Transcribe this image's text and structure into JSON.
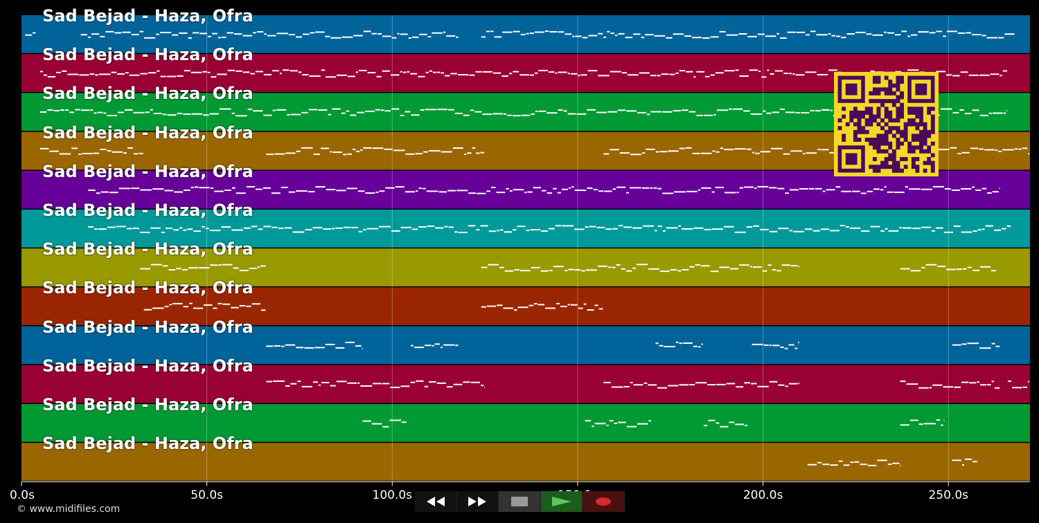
{
  "app": {
    "copyright": "© www.midifiles.com"
  },
  "colors": {
    "background": "#000000",
    "note": "#ffffff",
    "qr_fg": "#4a0a5a",
    "qr_bg": "#f5d728"
  },
  "tracks": [
    {
      "label": "Sad Bejad - Haza, Ofra",
      "color": "#00639a"
    },
    {
      "label": "Sad Bejad - Haza, Ofra",
      "color": "#990033"
    },
    {
      "label": "Sad Bejad - Haza, Ofra",
      "color": "#009933"
    },
    {
      "label": "Sad Bejad - Haza, Ofra",
      "color": "#996600"
    },
    {
      "label": "Sad Bejad - Haza, Ofra",
      "color": "#660099"
    },
    {
      "label": "Sad Bejad - Haza, Ofra",
      "color": "#009999"
    },
    {
      "label": "Sad Bejad - Haza, Ofra",
      "color": "#999900"
    },
    {
      "label": "Sad Bejad - Haza, Ofra",
      "color": "#992600"
    },
    {
      "label": "Sad Bejad - Haza, Ofra",
      "color": "#00639a"
    },
    {
      "label": "Sad Bejad - Haza, Ofra",
      "color": "#990033"
    },
    {
      "label": "Sad Bejad - Haza, Ofra",
      "color": "#009933"
    },
    {
      "label": "Sad Bejad - Haza, Ofra",
      "color": "#996600"
    }
  ],
  "timeline": {
    "xlim": [
      0,
      272
    ],
    "ticks": [
      {
        "value": 0,
        "label": "0.0s"
      },
      {
        "value": 50,
        "label": "50.0s"
      },
      {
        "value": 100,
        "label": "100.0s"
      },
      {
        "value": 150,
        "label": "150.0s"
      },
      {
        "value": 200,
        "label": "200.0s"
      },
      {
        "value": 250,
        "label": "250.0s"
      }
    ]
  },
  "notes": [
    [
      [
        1,
        4
      ],
      [
        16,
        118
      ],
      [
        124,
        268
      ]
    ],
    [
      [
        5,
        266
      ]
    ],
    [
      [
        5,
        266
      ]
    ],
    [
      [
        5,
        33
      ],
      [
        66,
        125
      ],
      [
        157,
        272
      ]
    ],
    [
      [
        18,
        264
      ]
    ],
    [
      [
        18,
        267
      ]
    ],
    [
      [
        32,
        66
      ],
      [
        124,
        210
      ],
      [
        237,
        263
      ]
    ],
    [
      [
        33,
        66
      ],
      [
        124,
        157
      ]
    ],
    [
      [
        66,
        92
      ],
      [
        105,
        118
      ],
      [
        171,
        184
      ],
      [
        197,
        210
      ],
      [
        251,
        264
      ]
    ],
    [
      [
        66,
        125
      ],
      [
        157,
        210
      ],
      [
        237,
        264
      ],
      [
        266,
        272
      ]
    ],
    [
      [
        92,
        104
      ],
      [
        152,
        170
      ],
      [
        184,
        196
      ],
      [
        237,
        249
      ]
    ],
    [
      [
        212,
        237
      ],
      [
        251,
        258
      ]
    ]
  ],
  "controls": [
    {
      "name": "rewind-button",
      "icon": "rewind-icon"
    },
    {
      "name": "fast-forward-button",
      "icon": "fast-forward-icon"
    },
    {
      "name": "stop-button",
      "icon": "stop-icon"
    },
    {
      "name": "play-button",
      "icon": "play-icon"
    },
    {
      "name": "record-button",
      "icon": "record-icon"
    }
  ]
}
